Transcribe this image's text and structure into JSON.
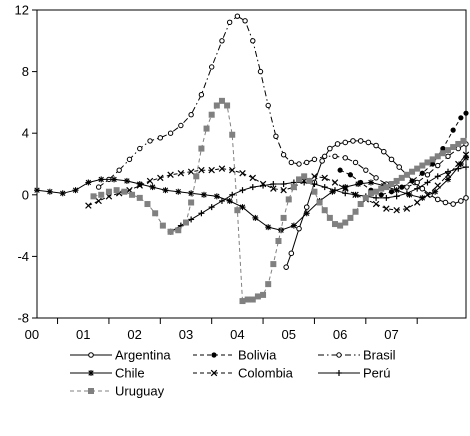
{
  "chart_data": {
    "type": "line",
    "title": "",
    "xlabel": "",
    "ylabel": "",
    "ylim": [
      -8,
      12
    ],
    "yticks": [
      -8,
      -4,
      0,
      4,
      8,
      12
    ],
    "xlim": [
      1999.6,
      2007.95
    ],
    "xtick_labels": [
      "00",
      "01",
      "02",
      "03",
      "04",
      "05",
      "06",
      "07"
    ],
    "grid": false,
    "legend_position": "bottom",
    "series": [
      {
        "name": "Argentina",
        "marker": "open-circle",
        "dash": "solid",
        "color": "#000000",
        "x": [
          2004.45,
          2004.55,
          2004.7,
          2004.85,
          2005.0,
          2005.15,
          2005.3,
          2005.45,
          2005.6,
          2005.75,
          2005.9,
          2006.05,
          2006.2,
          2006.35,
          2006.5,
          2006.65,
          2006.8,
          2006.95,
          2007.1,
          2007.25,
          2007.4,
          2007.55,
          2007.7,
          2007.85,
          2007.95
        ],
        "y": [
          -4.7,
          -3.8,
          -2.2,
          -0.8,
          0.8,
          2.2,
          3.0,
          3.3,
          3.4,
          3.5,
          3.5,
          3.4,
          3.2,
          2.8,
          2.3,
          1.8,
          1.3,
          0.8,
          0.4,
          0.0,
          -0.3,
          -0.5,
          -0.6,
          -0.4,
          -0.2
        ]
      },
      {
        "name": "Bolivia",
        "marker": "filled-dot",
        "dash": "dashed",
        "color": "#000000",
        "x": [
          2005.5,
          2005.7,
          2005.9,
          2006.1,
          2006.3,
          2006.5,
          2006.7,
          2006.9,
          2007.1,
          2007.3,
          2007.5,
          2007.7,
          2007.85,
          2007.95
        ],
        "y": [
          1.6,
          1.3,
          0.8,
          0.3,
          0.0,
          0.2,
          0.5,
          0.9,
          1.4,
          2.0,
          3.0,
          4.2,
          5.0,
          5.3
        ]
      },
      {
        "name": "Brasil",
        "marker": "small-circle",
        "dash": "dash-dot",
        "color": "#000000",
        "x": [
          2000.8,
          2001.0,
          2001.2,
          2001.4,
          2001.6,
          2001.8,
          2002.0,
          2002.2,
          2002.4,
          2002.6,
          2002.8,
          2003.0,
          2003.2,
          2003.35,
          2003.5,
          2003.65,
          2003.8,
          2003.95,
          2004.1,
          2004.25,
          2004.4,
          2004.55,
          2004.7,
          2004.85,
          2005.0,
          2005.2,
          2005.4,
          2005.6,
          2005.8,
          2006.0,
          2006.2,
          2006.4,
          2006.6,
          2006.8,
          2007.0,
          2007.2,
          2007.4,
          2007.6,
          2007.8,
          2007.95
        ],
        "y": [
          0.5,
          1.0,
          1.6,
          2.3,
          3.0,
          3.5,
          3.7,
          4.0,
          4.5,
          5.2,
          6.5,
          8.3,
          10.0,
          11.2,
          11.6,
          11.3,
          10.0,
          8.0,
          5.8,
          3.8,
          2.6,
          2.1,
          2.0,
          2.1,
          2.3,
          2.5,
          2.5,
          2.4,
          2.1,
          1.6,
          1.1,
          0.7,
          0.5,
          0.5,
          0.8,
          1.3,
          1.9,
          2.5,
          3.0,
          3.3
        ]
      },
      {
        "name": "Chile",
        "marker": "star",
        "dash": "solid",
        "color": "#000000",
        "x": [
          1999.6,
          1999.85,
          2000.1,
          2000.35,
          2000.6,
          2000.85,
          2001.1,
          2001.35,
          2001.6,
          2001.85,
          2002.1,
          2002.35,
          2002.6,
          2002.85,
          2003.1,
          2003.35,
          2003.6,
          2003.85,
          2004.1,
          2004.35,
          2004.6,
          2004.85,
          2005.1,
          2005.35,
          2005.6,
          2005.85,
          2006.1,
          2006.35,
          2006.6,
          2006.85,
          2007.1,
          2007.35,
          2007.6,
          2007.85,
          2007.95
        ],
        "y": [
          0.3,
          0.2,
          0.1,
          0.3,
          0.8,
          1.0,
          1.0,
          0.9,
          0.7,
          0.5,
          0.3,
          0.2,
          0.1,
          0.0,
          -0.1,
          -0.4,
          -0.8,
          -1.5,
          -2.1,
          -2.3,
          -2.0,
          -1.2,
          -0.4,
          0.2,
          0.5,
          0.7,
          0.8,
          0.6,
          0.3,
          0.0,
          -0.2,
          0.2,
          1.0,
          2.0,
          2.4
        ]
      },
      {
        "name": "Colombia",
        "marker": "x",
        "dash": "dashed",
        "color": "#000000",
        "x": [
          2000.6,
          2000.8,
          2001.0,
          2001.2,
          2001.4,
          2001.6,
          2001.8,
          2002.0,
          2002.2,
          2002.4,
          2002.6,
          2002.8,
          2003.0,
          2003.2,
          2003.4,
          2003.6,
          2003.8,
          2004.0,
          2004.2,
          2004.4,
          2004.6,
          2004.8,
          2005.0,
          2005.2,
          2005.4,
          2005.6,
          2005.8,
          2006.0,
          2006.2,
          2006.4,
          2006.6,
          2006.8,
          2007.0,
          2007.2,
          2007.4,
          2007.6,
          2007.8,
          2007.95
        ],
        "y": [
          -0.7,
          -0.4,
          -0.1,
          0.1,
          0.3,
          0.6,
          0.9,
          1.1,
          1.3,
          1.4,
          1.5,
          1.6,
          1.6,
          1.7,
          1.6,
          1.4,
          1.1,
          0.7,
          0.4,
          0.3,
          0.5,
          0.9,
          1.2,
          1.1,
          0.8,
          0.4,
          0.0,
          -0.3,
          -0.6,
          -0.9,
          -1.0,
          -0.9,
          -0.5,
          0.0,
          0.6,
          1.3,
          2.0,
          2.6
        ]
      },
      {
        "name": "Perú",
        "marker": "plus",
        "dash": "solid",
        "color": "#000000",
        "x": [
          2002.2,
          2002.4,
          2002.6,
          2002.8,
          2003.0,
          2003.2,
          2003.4,
          2003.6,
          2003.8,
          2004.0,
          2004.2,
          2004.4,
          2004.6,
          2004.8,
          2005.0,
          2005.2,
          2005.4,
          2005.6,
          2005.8,
          2006.0,
          2006.2,
          2006.4,
          2006.6,
          2006.8,
          2007.0,
          2007.2,
          2007.4,
          2007.6,
          2007.8,
          2007.95
        ],
        "y": [
          -2.4,
          -2.0,
          -1.6,
          -1.2,
          -0.8,
          -0.4,
          0.0,
          0.3,
          0.5,
          0.6,
          0.7,
          0.7,
          0.8,
          0.8,
          0.7,
          0.5,
          0.3,
          0.1,
          0.0,
          -0.1,
          -0.2,
          -0.2,
          -0.1,
          0.1,
          0.4,
          0.8,
          1.2,
          1.5,
          1.7,
          1.8
        ]
      },
      {
        "name": "Uruguay",
        "marker": "square",
        "dash": "dashed",
        "color": "#808080",
        "x": [
          2000.7,
          2000.85,
          2001.0,
          2001.15,
          2001.3,
          2001.45,
          2001.6,
          2001.75,
          2001.9,
          2002.05,
          2002.2,
          2002.35,
          2002.5,
          2002.6,
          2002.7,
          2002.8,
          2002.9,
          2003.0,
          2003.1,
          2003.2,
          2003.3,
          2003.4,
          2003.5,
          2003.6,
          2003.7,
          2003.8,
          2003.9,
          2004.0,
          2004.1,
          2004.2,
          2004.3,
          2004.4,
          2004.5,
          2004.6,
          2004.7,
          2004.8,
          2004.9,
          2005.0,
          2005.1,
          2005.2,
          2005.3,
          2005.4,
          2005.5,
          2005.6,
          2005.7,
          2005.8,
          2005.9,
          2006.0,
          2006.1,
          2006.2,
          2006.3,
          2006.4,
          2006.5,
          2006.6,
          2006.7,
          2006.8,
          2006.9,
          2007.0,
          2007.1,
          2007.2,
          2007.3,
          2007.4,
          2007.5,
          2007.6,
          2007.7,
          2007.8,
          2007.9
        ],
        "y": [
          -0.1,
          0.0,
          0.2,
          0.3,
          0.2,
          0.0,
          -0.2,
          -0.6,
          -1.2,
          -2.0,
          -2.4,
          -2.3,
          -1.8,
          -0.5,
          1.2,
          3.0,
          4.3,
          5.2,
          5.8,
          6.1,
          5.8,
          3.9,
          -1.0,
          -6.9,
          -6.8,
          -6.8,
          -6.6,
          -6.5,
          -5.8,
          -4.5,
          -3.0,
          -1.5,
          -0.3,
          0.5,
          1.0,
          1.2,
          0.9,
          0.2,
          -0.5,
          -1.0,
          -1.5,
          -1.9,
          -2.0,
          -1.8,
          -1.5,
          -1.1,
          -0.6,
          -0.2,
          0.1,
          0.2,
          0.4,
          0.5,
          0.7,
          0.9,
          1.1,
          1.3,
          1.5,
          1.7,
          1.9,
          2.1,
          2.3,
          2.5,
          2.7,
          2.9,
          3.1,
          3.3,
          3.5
        ]
      }
    ]
  }
}
